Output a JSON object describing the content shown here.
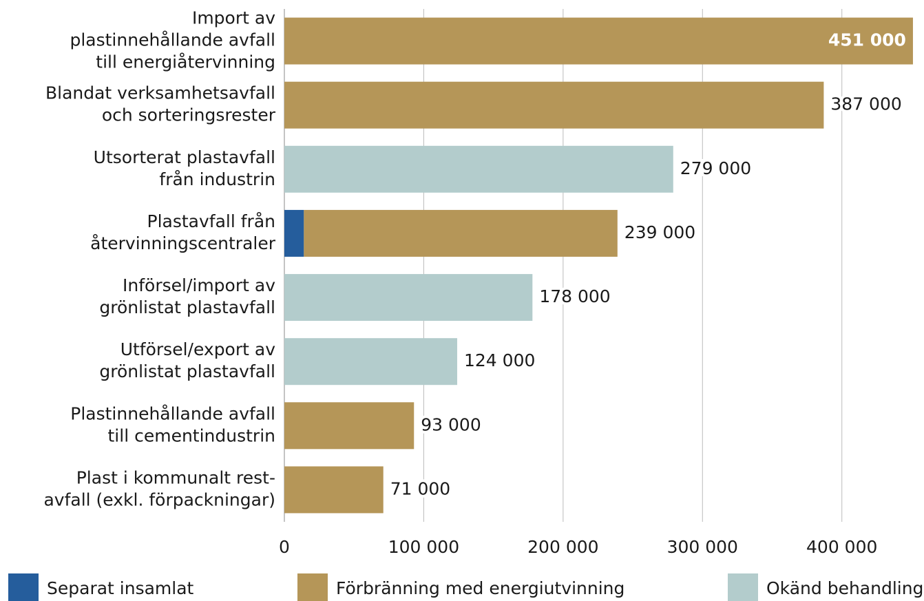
{
  "chart_data": {
    "type": "stacked-barh",
    "categories": [
      [
        "Import av",
        "plastinnehållande avfall",
        "till energiåtervinning"
      ],
      [
        "Blandat verksamhetsavfall",
        "och sorteringsrester"
      ],
      [
        "Utsorterat plastavfall",
        "från industrin"
      ],
      [
        "Plastavfall från",
        "återvinningscentraler"
      ],
      [
        "Införsel/import av",
        "grönlistat plastavfall"
      ],
      [
        "Utförsel/export av",
        "grönlistat plastavfall"
      ],
      [
        "Plastinnehållande avfall",
        "till cementindustrin"
      ],
      [
        "Plast i kommunalt rest-",
        "avfall (exkl. förpackningar)"
      ]
    ],
    "series": [
      {
        "name": "Separat insamlat",
        "color": "#255d9c",
        "values": [
          null,
          null,
          null,
          14000,
          null,
          null,
          null,
          null
        ]
      },
      {
        "name": "Förbränning med energiutvinning",
        "color": "#b59658",
        "values": [
          451000,
          387000,
          null,
          225000,
          null,
          null,
          93000,
          71000
        ]
      },
      {
        "name": "Okänd behandling",
        "color": "#b3cccc",
        "values": [
          null,
          null,
          279000,
          null,
          178000,
          124000,
          null,
          null
        ]
      }
    ],
    "totals": [
      451000,
      387000,
      279000,
      239000,
      178000,
      124000,
      93000,
      71000
    ],
    "total_labels": [
      "451 000",
      "387 000",
      "279 000",
      "239 000",
      "178 000",
      "124 000",
      "93 000",
      "71 000"
    ],
    "xlim": [
      0,
      453000
    ],
    "xticks": [
      0,
      {
        "value": 100000,
        "label": "100 000"
      },
      {
        "value": 200000,
        "label": "200 000"
      },
      {
        "value": 300000,
        "label": "300 000"
      },
      {
        "value": 400000,
        "label": "400 000"
      }
    ],
    "grid": true
  }
}
